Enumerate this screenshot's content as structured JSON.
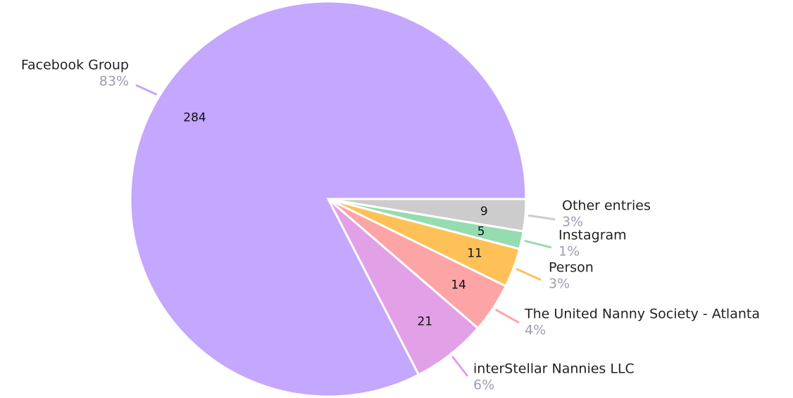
{
  "chart_data": {
    "type": "pie",
    "categories": [
      "Facebook Group",
      "interStellar Nannies LLC",
      "The United Nanny Society - Atlanta",
      "Person",
      "Instagram",
      "Other entries"
    ],
    "values": [
      284,
      21,
      14,
      11,
      5,
      9
    ],
    "percent_labels": [
      "83%",
      "6%",
      "4%",
      "3%",
      "1%",
      "3%"
    ],
    "colors": [
      "#c4a7fe",
      "#e2a0e6",
      "#fda4a6",
      "#fec158",
      "#95dcb0",
      "#cccccc"
    ]
  }
}
